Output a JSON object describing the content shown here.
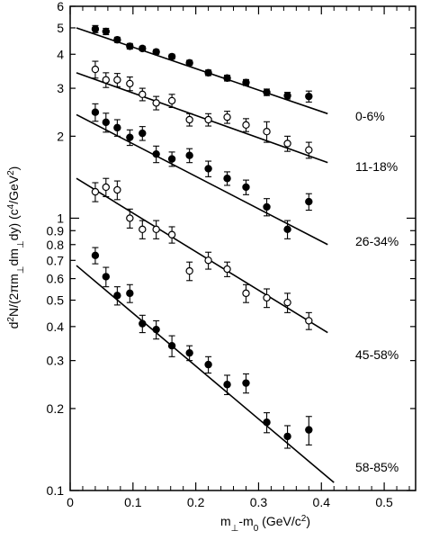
{
  "chart_data": {
    "type": "scatter",
    "title": "",
    "xlabel_main": "m",
    "xlabel_sub1": "⊥",
    "xlabel_mid": "-m",
    "xlabel_sub2": "0",
    "xlabel_unit": "(GeV/c",
    "xlabel_sup": "2",
    "xlabel_close": ")",
    "ylabel_pre": "d",
    "ylabel_sup1": "2",
    "ylabel_mid1": "N/(2πm",
    "ylabel_sub1": "⊥",
    "ylabel_mid2": "dm",
    "ylabel_sub2": "⊥",
    "ylabel_mid3": "dy) (c",
    "ylabel_sup2": "4",
    "ylabel_mid4": "/GeV",
    "ylabel_sup3": "2",
    "ylabel_close": ")",
    "xlim": [
      0,
      0.55
    ],
    "ylim": [
      0.1,
      6
    ],
    "yscale": "log",
    "x_ticks": [
      {
        "value": 0,
        "label": "0"
      },
      {
        "value": 0.1,
        "label": "0.1"
      },
      {
        "value": 0.2,
        "label": "0.2"
      },
      {
        "value": 0.3,
        "label": "0.3"
      },
      {
        "value": 0.4,
        "label": "0.4"
      },
      {
        "value": 0.5,
        "label": "0.5"
      }
    ],
    "x_minor_ticks": [
      0.02,
      0.04,
      0.06,
      0.08,
      0.12,
      0.14,
      0.16,
      0.18,
      0.22,
      0.24,
      0.26,
      0.28,
      0.32,
      0.34,
      0.36,
      0.38,
      0.42,
      0.44,
      0.46,
      0.48,
      0.52,
      0.54
    ],
    "y_ticks": [
      {
        "value": 0.1,
        "label": "0.1"
      },
      {
        "value": 0.2,
        "label": "0.2"
      },
      {
        "value": 0.3,
        "label": "0.3"
      },
      {
        "value": 0.4,
        "label": "0.4"
      },
      {
        "value": 0.5,
        "label": "0.5"
      },
      {
        "value": 0.6,
        "label": "0.6"
      },
      {
        "value": 0.7,
        "label": "0.7"
      },
      {
        "value": 0.8,
        "label": "0.8"
      },
      {
        "value": 0.9,
        "label": "0.9"
      },
      {
        "value": 1,
        "label": "1"
      },
      {
        "value": 2,
        "label": "2"
      },
      {
        "value": 3,
        "label": "3"
      },
      {
        "value": 4,
        "label": "4"
      },
      {
        "value": 5,
        "label": "5"
      },
      {
        "value": 6,
        "label": "6"
      }
    ],
    "grid": false,
    "series": [
      {
        "name": "0-6%",
        "marker": "filled",
        "fit": {
          "x0": 0.01,
          "y0": 5.0,
          "x1": 0.41,
          "y1": 2.42
        },
        "points": [
          {
            "x": 0.04,
            "y": 4.95,
            "err": 0.15
          },
          {
            "x": 0.057,
            "y": 4.85,
            "err": 0.13
          },
          {
            "x": 0.075,
            "y": 4.52,
            "err": 0.1
          },
          {
            "x": 0.095,
            "y": 4.28,
            "err": 0.1
          },
          {
            "x": 0.115,
            "y": 4.2,
            "err": 0.08
          },
          {
            "x": 0.137,
            "y": 4.08,
            "err": 0.08
          },
          {
            "x": 0.162,
            "y": 3.92,
            "err": 0.08
          },
          {
            "x": 0.19,
            "y": 3.72,
            "err": 0.08
          },
          {
            "x": 0.22,
            "y": 3.42,
            "err": 0.08
          },
          {
            "x": 0.25,
            "y": 3.27,
            "err": 0.08
          },
          {
            "x": 0.28,
            "y": 3.15,
            "err": 0.08
          },
          {
            "x": 0.313,
            "y": 2.9,
            "err": 0.08
          },
          {
            "x": 0.346,
            "y": 2.82,
            "err": 0.08
          },
          {
            "x": 0.38,
            "y": 2.8,
            "err": 0.13
          }
        ]
      },
      {
        "name": "11-18%",
        "marker": "open",
        "fit": {
          "x0": 0.01,
          "y0": 3.42,
          "x1": 0.41,
          "y1": 1.6
        },
        "points": [
          {
            "x": 0.04,
            "y": 3.52,
            "err": 0.25
          },
          {
            "x": 0.057,
            "y": 3.22,
            "err": 0.2
          },
          {
            "x": 0.075,
            "y": 3.22,
            "err": 0.18
          },
          {
            "x": 0.095,
            "y": 3.12,
            "err": 0.18
          },
          {
            "x": 0.115,
            "y": 2.85,
            "err": 0.15
          },
          {
            "x": 0.137,
            "y": 2.65,
            "err": 0.15
          },
          {
            "x": 0.162,
            "y": 2.7,
            "err": 0.15
          },
          {
            "x": 0.19,
            "y": 2.3,
            "err": 0.12
          },
          {
            "x": 0.22,
            "y": 2.3,
            "err": 0.12
          },
          {
            "x": 0.25,
            "y": 2.35,
            "err": 0.12
          },
          {
            "x": 0.28,
            "y": 2.2,
            "err": 0.12
          },
          {
            "x": 0.313,
            "y": 2.08,
            "err": 0.18
          },
          {
            "x": 0.346,
            "y": 1.88,
            "err": 0.12
          },
          {
            "x": 0.38,
            "y": 1.78,
            "err": 0.12
          }
        ]
      },
      {
        "name": "26-34%",
        "marker": "filled",
        "fit": {
          "x0": 0.01,
          "y0": 2.4,
          "x1": 0.41,
          "y1": 0.8
        },
        "points": [
          {
            "x": 0.04,
            "y": 2.45,
            "err": 0.18
          },
          {
            "x": 0.057,
            "y": 2.25,
            "err": 0.18
          },
          {
            "x": 0.075,
            "y": 2.15,
            "err": 0.15
          },
          {
            "x": 0.095,
            "y": 1.98,
            "err": 0.13
          },
          {
            "x": 0.115,
            "y": 2.05,
            "err": 0.12
          },
          {
            "x": 0.137,
            "y": 1.72,
            "err": 0.12
          },
          {
            "x": 0.162,
            "y": 1.65,
            "err": 0.1
          },
          {
            "x": 0.19,
            "y": 1.7,
            "err": 0.1
          },
          {
            "x": 0.22,
            "y": 1.52,
            "err": 0.1
          },
          {
            "x": 0.25,
            "y": 1.4,
            "err": 0.08
          },
          {
            "x": 0.28,
            "y": 1.3,
            "err": 0.08
          },
          {
            "x": 0.313,
            "y": 1.1,
            "err": 0.08
          },
          {
            "x": 0.346,
            "y": 0.91,
            "err": 0.07
          },
          {
            "x": 0.38,
            "y": 1.15,
            "err": 0.08
          }
        ]
      },
      {
        "name": "45-58%",
        "marker": "open",
        "fit": {
          "x0": 0.01,
          "y0": 1.4,
          "x1": 0.41,
          "y1": 0.38
        },
        "points": [
          {
            "x": 0.04,
            "y": 1.25,
            "err": 0.1
          },
          {
            "x": 0.057,
            "y": 1.3,
            "err": 0.1
          },
          {
            "x": 0.075,
            "y": 1.27,
            "err": 0.1
          },
          {
            "x": 0.095,
            "y": 1.0,
            "err": 0.08
          },
          {
            "x": 0.115,
            "y": 0.91,
            "err": 0.07
          },
          {
            "x": 0.137,
            "y": 0.91,
            "err": 0.07
          },
          {
            "x": 0.162,
            "y": 0.87,
            "err": 0.06
          },
          {
            "x": 0.19,
            "y": 0.64,
            "err": 0.05
          },
          {
            "x": 0.22,
            "y": 0.7,
            "err": 0.05
          },
          {
            "x": 0.25,
            "y": 0.65,
            "err": 0.04
          },
          {
            "x": 0.28,
            "y": 0.53,
            "err": 0.04
          },
          {
            "x": 0.313,
            "y": 0.51,
            "err": 0.04
          },
          {
            "x": 0.346,
            "y": 0.49,
            "err": 0.04
          },
          {
            "x": 0.38,
            "y": 0.42,
            "err": 0.03
          }
        ]
      },
      {
        "name": "58-85%",
        "marker": "filled",
        "fit": {
          "x0": 0.01,
          "y0": 0.67,
          "x1": 0.42,
          "y1": 0.107
        },
        "points": [
          {
            "x": 0.04,
            "y": 0.73,
            "err": 0.05
          },
          {
            "x": 0.057,
            "y": 0.61,
            "err": 0.05
          },
          {
            "x": 0.075,
            "y": 0.52,
            "err": 0.04
          },
          {
            "x": 0.095,
            "y": 0.53,
            "err": 0.04
          },
          {
            "x": 0.115,
            "y": 0.41,
            "err": 0.03
          },
          {
            "x": 0.137,
            "y": 0.39,
            "err": 0.03
          },
          {
            "x": 0.162,
            "y": 0.34,
            "err": 0.03
          },
          {
            "x": 0.19,
            "y": 0.32,
            "err": 0.02
          },
          {
            "x": 0.22,
            "y": 0.29,
            "err": 0.02
          },
          {
            "x": 0.25,
            "y": 0.245,
            "err": 0.02
          },
          {
            "x": 0.28,
            "y": 0.248,
            "err": 0.02
          },
          {
            "x": 0.313,
            "y": 0.178,
            "err": 0.015
          },
          {
            "x": 0.346,
            "y": 0.158,
            "err": 0.015
          },
          {
            "x": 0.38,
            "y": 0.167,
            "err": 0.02
          }
        ]
      }
    ]
  }
}
